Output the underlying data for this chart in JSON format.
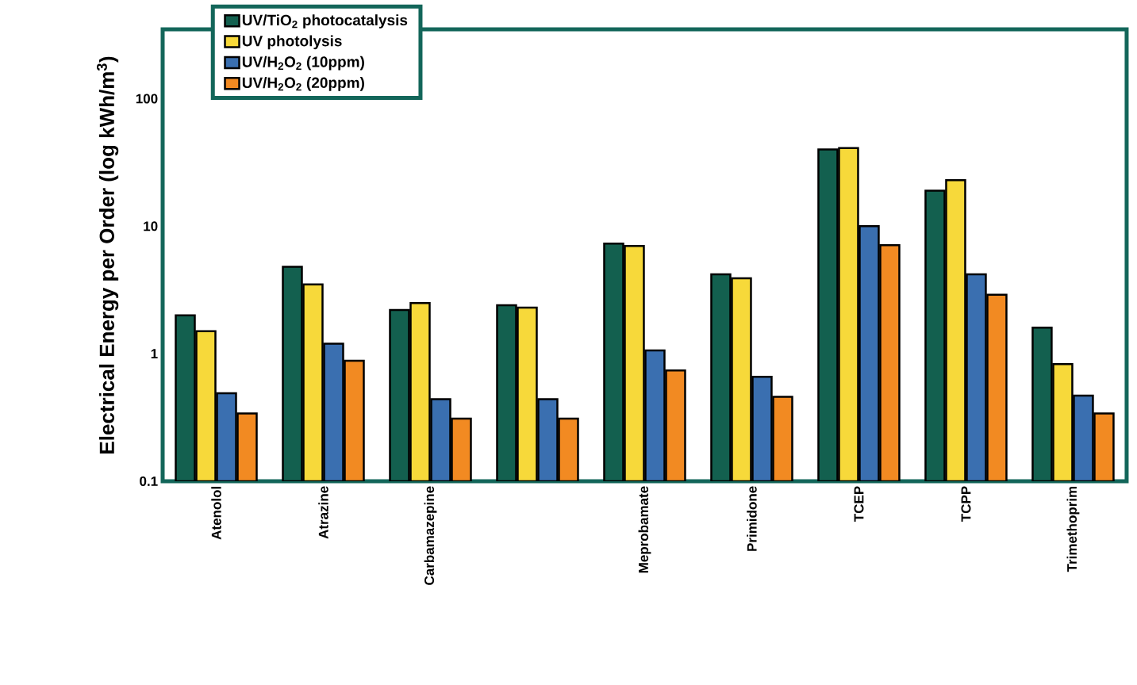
{
  "chart_data": {
    "type": "bar",
    "ylabel": "Electrical Energy per Order (log kWh/m$^{3}$)",
    "log": true,
    "grid": false,
    "legend": "top left",
    "categories": [
      "Atenolol",
      "Atrazine",
      "Carbamazepine",
      null,
      "Meprobamate",
      "Primidone",
      "TCEP",
      "TCPP",
      "Trimethoprim"
    ],
    "ylim": [
      0.1,
      350
    ],
    "yticks": [
      0.1,
      1,
      10,
      100
    ],
    "series": [
      {
        "name": "UV/TiO$_{2}$ photocatalysis",
        "color": "#13604f",
        "values": [
          2.0,
          4.8,
          2.2,
          2.4,
          7.3,
          4.2,
          40,
          19,
          1.6
        ]
      },
      {
        "name": "UV photolysis",
        "color": "#f7d93a",
        "values": [
          1.5,
          3.5,
          2.5,
          2.3,
          7.0,
          3.9,
          41,
          23,
          0.83
        ]
      },
      {
        "name": "UV/H$_{2}$O$_{2}$ (10ppm)",
        "color": "#3a6fb0",
        "values": [
          0.49,
          1.2,
          0.44,
          0.44,
          1.06,
          0.66,
          10,
          4.2,
          0.47
        ]
      },
      {
        "name": "UV/H$_{2}$O$_{2}$ (20ppm)",
        "color": "#f28a22",
        "values": [
          0.34,
          0.88,
          0.31,
          0.31,
          0.74,
          0.46,
          7.1,
          2.9,
          0.34
        ]
      }
    ]
  }
}
